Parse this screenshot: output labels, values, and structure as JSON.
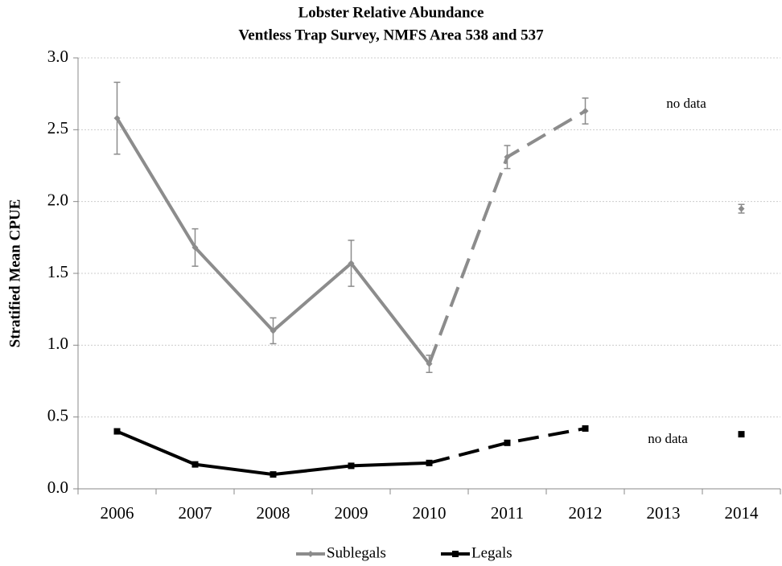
{
  "chart_data": {
    "type": "line",
    "title": "Lobster Relative Abundance",
    "subtitle": "Ventless Trap Survey, NMFS Area 538 and 537",
    "y_label": "Stratified Mean CPUE",
    "categories": [
      "2006",
      "2007",
      "2008",
      "2009",
      "2010",
      "2011",
      "2012",
      "2013",
      "2014"
    ],
    "series": [
      {
        "name": "Sublegals",
        "color": "#8c8c8c",
        "marker": "diamond",
        "values": [
          2.58,
          1.68,
          1.1,
          1.57,
          0.87,
          2.31,
          2.63,
          null,
          1.95
        ],
        "errors": [
          0.25,
          0.13,
          0.09,
          0.16,
          0.06,
          0.08,
          0.09,
          null,
          0.03
        ],
        "segment_styles": [
          "solid",
          "solid",
          "solid",
          "solid",
          "dashed",
          "dashed",
          null,
          null
        ]
      },
      {
        "name": "Legals",
        "color": "#000000",
        "marker": "square",
        "values": [
          0.4,
          0.17,
          0.1,
          0.16,
          0.18,
          0.32,
          0.42,
          null,
          0.38
        ],
        "segment_styles": [
          "solid",
          "solid",
          "solid",
          "solid",
          "dashed",
          "dashed",
          null,
          null
        ]
      }
    ],
    "annotations": [
      "no data",
      "no data"
    ],
    "ylim": [
      0,
      3
    ],
    "yticks": [
      {
        "value": 0,
        "label": "0.0"
      },
      0.5,
      {
        "value": 1,
        "label": "1.0"
      },
      1.5,
      {
        "value": 2,
        "label": "2.0"
      },
      2.5,
      {
        "value": 3,
        "label": "3.0"
      }
    ],
    "grid": true,
    "legend": "bottom"
  }
}
